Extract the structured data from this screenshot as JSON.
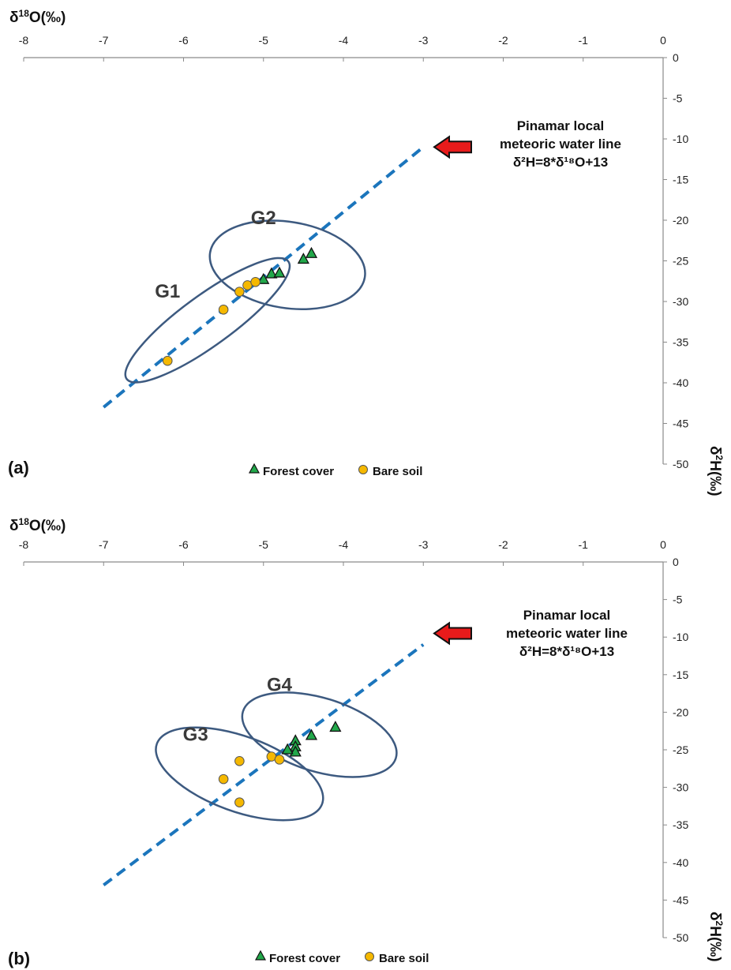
{
  "chart_data": [
    {
      "type": "scatter",
      "panel_label": "(a)",
      "xlabel": {
        "pre": "δ",
        "sup": "18",
        "post": "O(‰)"
      },
      "ylabel": {
        "pre": "δ",
        "sup": "2",
        "post": "H(‰)"
      },
      "x_axis_position": "top",
      "y_axis_position": "right",
      "xlim": [
        -8,
        0
      ],
      "ylim": [
        -50,
        0
      ],
      "x_ticks": [
        -8,
        -7,
        -6,
        -5,
        -4,
        -3,
        -2,
        -1,
        0
      ],
      "y_ticks": [
        0,
        -5,
        -10,
        -15,
        -20,
        -25,
        -30,
        -35,
        -40,
        -45,
        -50
      ],
      "grid": false,
      "legend_position": "bottom-center",
      "series": [
        {
          "name": "Forest cover",
          "marker": "triangle",
          "color": "#22a84a",
          "points": [
            [
              -5.0,
              -27.3
            ],
            [
              -4.9,
              -26.6
            ],
            [
              -4.8,
              -26.5
            ],
            [
              -4.5,
              -24.8
            ],
            [
              -4.4,
              -24.1
            ]
          ]
        },
        {
          "name": "Bare soil",
          "marker": "circle",
          "color": "#f5b800",
          "points": [
            [
              -6.2,
              -37.3
            ],
            [
              -5.5,
              -31.0
            ],
            [
              -5.3,
              -28.8
            ],
            [
              -5.2,
              -28.0
            ],
            [
              -5.1,
              -27.6
            ]
          ]
        }
      ],
      "line": {
        "style": "dashed",
        "color": "#1b75bc",
        "x_range": [
          -7,
          -3
        ]
      },
      "arrow": {
        "color": "#e81b1b",
        "x": -2.4,
        "y": -11
      },
      "annotation": [
        "Pinamar local",
        "meteoric water line",
        "δ²H=8*δ¹⁸O+13"
      ],
      "groups": [
        {
          "label": "G1",
          "cx": -5.7,
          "cy": -32.3,
          "rx": 1.25,
          "ry": 3.1,
          "rotate": -36,
          "label_x": -6.2,
          "label_y": -29.5
        },
        {
          "label": "G2",
          "cx": -4.7,
          "cy": -25.5,
          "rx": 0.98,
          "ry": 5.3,
          "rotate": 9,
          "label_x": -5.0,
          "label_y": -20.5
        }
      ]
    },
    {
      "type": "scatter",
      "panel_label": "(b)",
      "xlabel": {
        "pre": "δ",
        "sup": "18",
        "post": "O(‰)"
      },
      "ylabel": {
        "pre": "δ",
        "sup": "2",
        "post": "H(‰)"
      },
      "x_axis_position": "top",
      "y_axis_position": "right",
      "xlim": [
        -8,
        0
      ],
      "ylim": [
        -50,
        0
      ],
      "x_ticks": [
        -8,
        -7,
        -6,
        -5,
        -4,
        -3,
        -2,
        -1,
        0
      ],
      "y_ticks": [
        0,
        -5,
        -10,
        -15,
        -20,
        -25,
        -30,
        -35,
        -40,
        -45,
        -50
      ],
      "grid": false,
      "legend_position": "bottom-center",
      "series": [
        {
          "name": "Forest cover",
          "marker": "triangle",
          "color": "#22a84a",
          "points": [
            [
              -4.1,
              -22.0
            ],
            [
              -4.4,
              -23.1
            ],
            [
              -4.6,
              -23.8
            ],
            [
              -4.6,
              -24.6
            ],
            [
              -4.6,
              -25.3
            ],
            [
              -4.7,
              -25.0
            ]
          ]
        },
        {
          "name": "Bare soil",
          "marker": "circle",
          "color": "#f5b800",
          "points": [
            [
              -5.5,
              -28.9
            ],
            [
              -5.3,
              -26.5
            ],
            [
              -5.3,
              -32.0
            ],
            [
              -4.9,
              -25.9
            ],
            [
              -4.8,
              -26.3
            ]
          ]
        }
      ],
      "line": {
        "style": "dashed",
        "color": "#1b75bc",
        "x_range": [
          -7,
          -3
        ]
      },
      "arrow": {
        "color": "#e81b1b",
        "x": -2.4,
        "y": -9.5
      },
      "annotation": [
        "Pinamar local",
        "meteoric water line",
        "δ²H=8*δ¹⁸O+13"
      ],
      "groups": [
        {
          "label": "G3",
          "cx": -5.3,
          "cy": -28.2,
          "rx": 1.1,
          "ry": 5.0,
          "rotate": 20,
          "label_x": -5.85,
          "label_y": -23.8
        },
        {
          "label": "G4",
          "cx": -4.3,
          "cy": -23.0,
          "rx": 1.0,
          "ry": 4.9,
          "rotate": 17,
          "label_x": -4.8,
          "label_y": -17.2
        }
      ]
    }
  ]
}
